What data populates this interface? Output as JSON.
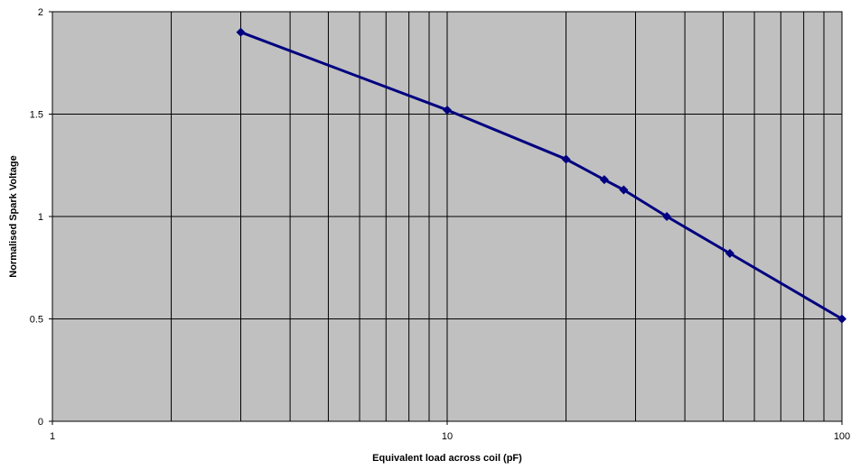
{
  "chart_data": {
    "type": "line",
    "title": "",
    "xlabel": "Equivalent load across coil (pF)",
    "ylabel": "Normalised Spark Voltage",
    "x_scale": "log",
    "xlim": [
      1,
      100
    ],
    "ylim": [
      0,
      2
    ],
    "x_ticks": [
      1,
      10,
      100
    ],
    "x_tick_labels": [
      "1",
      "10",
      "100"
    ],
    "y_ticks": [
      0,
      0.5,
      1,
      1.5,
      2
    ],
    "y_tick_labels": [
      "0",
      "0.5",
      "1",
      "1.5",
      "2"
    ],
    "grid": true,
    "legend": "none",
    "series": [
      {
        "x": [
          3,
          10,
          20,
          25,
          28,
          36,
          52,
          100
        ],
        "y": [
          1.9,
          1.52,
          1.28,
          1.18,
          1.13,
          1.0,
          0.82,
          0.5
        ],
        "marker": "diamond"
      }
    ]
  },
  "colors": {
    "plot_background": "#c0c0c0",
    "gridline": "#000000",
    "series_line": "#000080",
    "marker": "#000080"
  }
}
